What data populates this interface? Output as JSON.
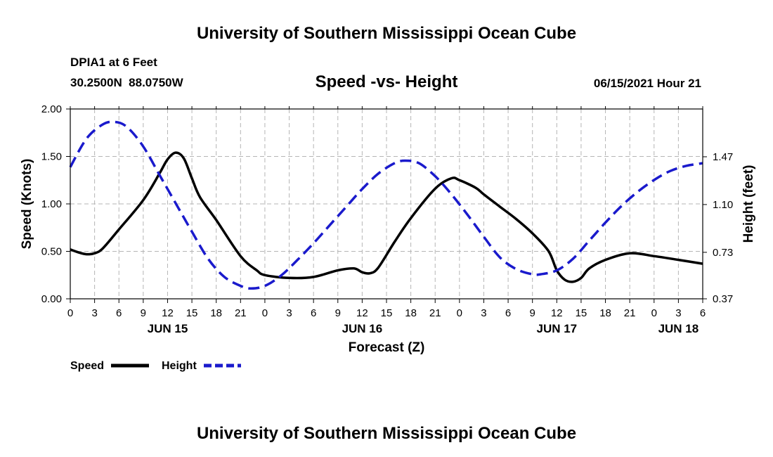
{
  "header": {
    "title": "University of Southern Mississippi Ocean Cube",
    "station": "DPIA1 at 6 Feet",
    "coords": "30.2500N  88.0750W",
    "datetime": "06/15/2021 Hour 21"
  },
  "footer": {
    "title": "University of Southern Mississippi Ocean Cube"
  },
  "chart_data": {
    "type": "line",
    "title": "Speed -vs- Height",
    "xlabel": "Forecast (Z)",
    "ylabel": "Speed (Knots)",
    "y2label": "Height (feet)",
    "x_unit": "hours from Jun 15 00Z",
    "xlim": [
      0,
      78
    ],
    "ylim": [
      0,
      2
    ],
    "y2lim": [
      0.37,
      1.84
    ],
    "x_tick_values": [
      0,
      3,
      6,
      9,
      12,
      15,
      18,
      21,
      24,
      27,
      30,
      33,
      36,
      39,
      42,
      45,
      48,
      51,
      54,
      57,
      60,
      63,
      66,
      69,
      72,
      75,
      78
    ],
    "x_tick_labels": [
      "0",
      "3",
      "6",
      "9",
      "12",
      "15",
      "18",
      "21",
      "0",
      "3",
      "6",
      "9",
      "12",
      "15",
      "18",
      "21",
      "0",
      "3",
      "6",
      "9",
      "12",
      "15",
      "18",
      "21",
      "0",
      "3",
      "6"
    ],
    "date_labels": [
      {
        "x": 12,
        "label": "JUN 15"
      },
      {
        "x": 36,
        "label": "JUN 16"
      },
      {
        "x": 60,
        "label": "JUN 17"
      },
      {
        "x": 75,
        "label": "JUN 18"
      }
    ],
    "y_tick_values": [
      0,
      0.5,
      1,
      1.5,
      2
    ],
    "y_tick_labels": [
      "0.00",
      "0.50",
      "1.00",
      "1.50",
      "2.00"
    ],
    "y2_tick_values": [
      0.37,
      0.73,
      1.1,
      1.47
    ],
    "y2_tick_labels": [
      "0.37",
      "0.73",
      "1.10",
      "1.47"
    ],
    "grid": true,
    "series": [
      {
        "name": "Speed",
        "axis": "left",
        "color": "#000000",
        "dash": "solid",
        "x": [
          0,
          1,
          2,
          3,
          4,
          6,
          9,
          11,
          12,
          13,
          14,
          15,
          16,
          18,
          21,
          23,
          24,
          27,
          30,
          33,
          35,
          36,
          37,
          38,
          40,
          42,
          45,
          47,
          48,
          50,
          51,
          53,
          55,
          57,
          59,
          60,
          61,
          62,
          63,
          64,
          66,
          69,
          72,
          75,
          78
        ],
        "values": [
          0.52,
          0.49,
          0.47,
          0.48,
          0.53,
          0.73,
          1.04,
          1.32,
          1.47,
          1.54,
          1.48,
          1.27,
          1.07,
          0.83,
          0.45,
          0.3,
          0.25,
          0.22,
          0.23,
          0.3,
          0.32,
          0.28,
          0.27,
          0.33,
          0.6,
          0.85,
          1.16,
          1.27,
          1.25,
          1.17,
          1.1,
          0.97,
          0.84,
          0.69,
          0.5,
          0.3,
          0.2,
          0.18,
          0.22,
          0.32,
          0.41,
          0.48,
          0.45,
          0.41,
          0.37
        ]
      },
      {
        "name": "Height",
        "axis": "right",
        "color": "#1a1acc",
        "dash": "dashed",
        "x": [
          0,
          2,
          4,
          5.5,
          7,
          9,
          11,
          13,
          15,
          17,
          19,
          21,
          22.3,
          24,
          26,
          28,
          30,
          32,
          34,
          36,
          38,
          40,
          41.3,
          43,
          45,
          47,
          49,
          51,
          53,
          55,
          57,
          58,
          60,
          62,
          64,
          66,
          68,
          70,
          72,
          74,
          76,
          78
        ],
        "values": [
          1.39,
          1.61,
          1.72,
          1.74,
          1.7,
          1.55,
          1.33,
          1.11,
          0.89,
          0.68,
          0.54,
          0.47,
          0.45,
          0.47,
          0.55,
          0.67,
          0.8,
          0.94,
          1.08,
          1.22,
          1.34,
          1.42,
          1.44,
          1.42,
          1.32,
          1.18,
          1.02,
          0.85,
          0.69,
          0.6,
          0.56,
          0.56,
          0.59,
          0.68,
          0.82,
          0.96,
          1.09,
          1.2,
          1.29,
          1.36,
          1.4,
          1.42
        ]
      }
    ]
  }
}
